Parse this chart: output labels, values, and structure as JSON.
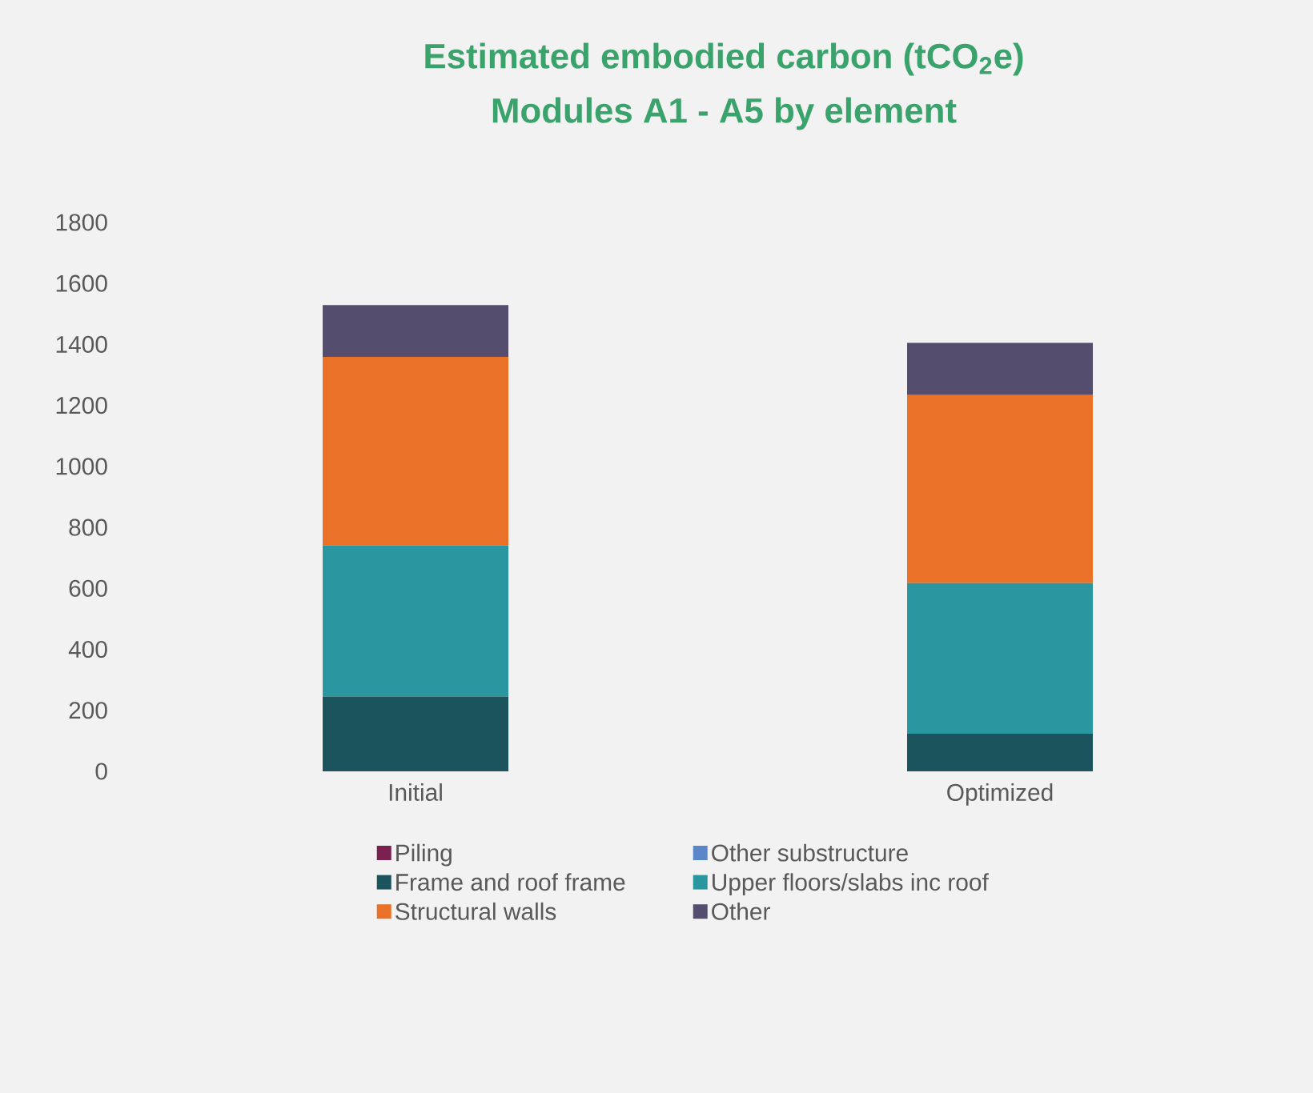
{
  "chart_data": {
    "type": "bar",
    "title": "Estimated embodied carbon (tCO$_{2}$e)",
    "subtitle": "Modules A1 - A5 by element",
    "categories": [
      "Initial",
      "Optimized"
    ],
    "stacked": true,
    "legend": "bottom",
    "ylim": [
      0,
      1800
    ],
    "yticks": [
      0,
      200,
      400,
      600,
      800,
      1000,
      1200,
      1400,
      1600,
      1800
    ],
    "series": [
      {
        "name": "Piling",
        "color": "#7b2150",
        "values": [
          0,
          0
        ]
      },
      {
        "name": "Other substructure",
        "color": "#5b86c9",
        "values": [
          0,
          0
        ]
      },
      {
        "name": "Frame and roof frame",
        "color": "#1b545c",
        "values": [
          245,
          123
        ]
      },
      {
        "name": "Upper floors/slabs inc roof",
        "color": "#2a97a0",
        "values": [
          496,
          494
        ]
      },
      {
        "name": "Structural walls",
        "color": "#ea7128",
        "values": [
          618,
          617
        ]
      },
      {
        "name": "Other",
        "color": "#544d6e",
        "values": [
          170,
          171
        ]
      }
    ]
  }
}
